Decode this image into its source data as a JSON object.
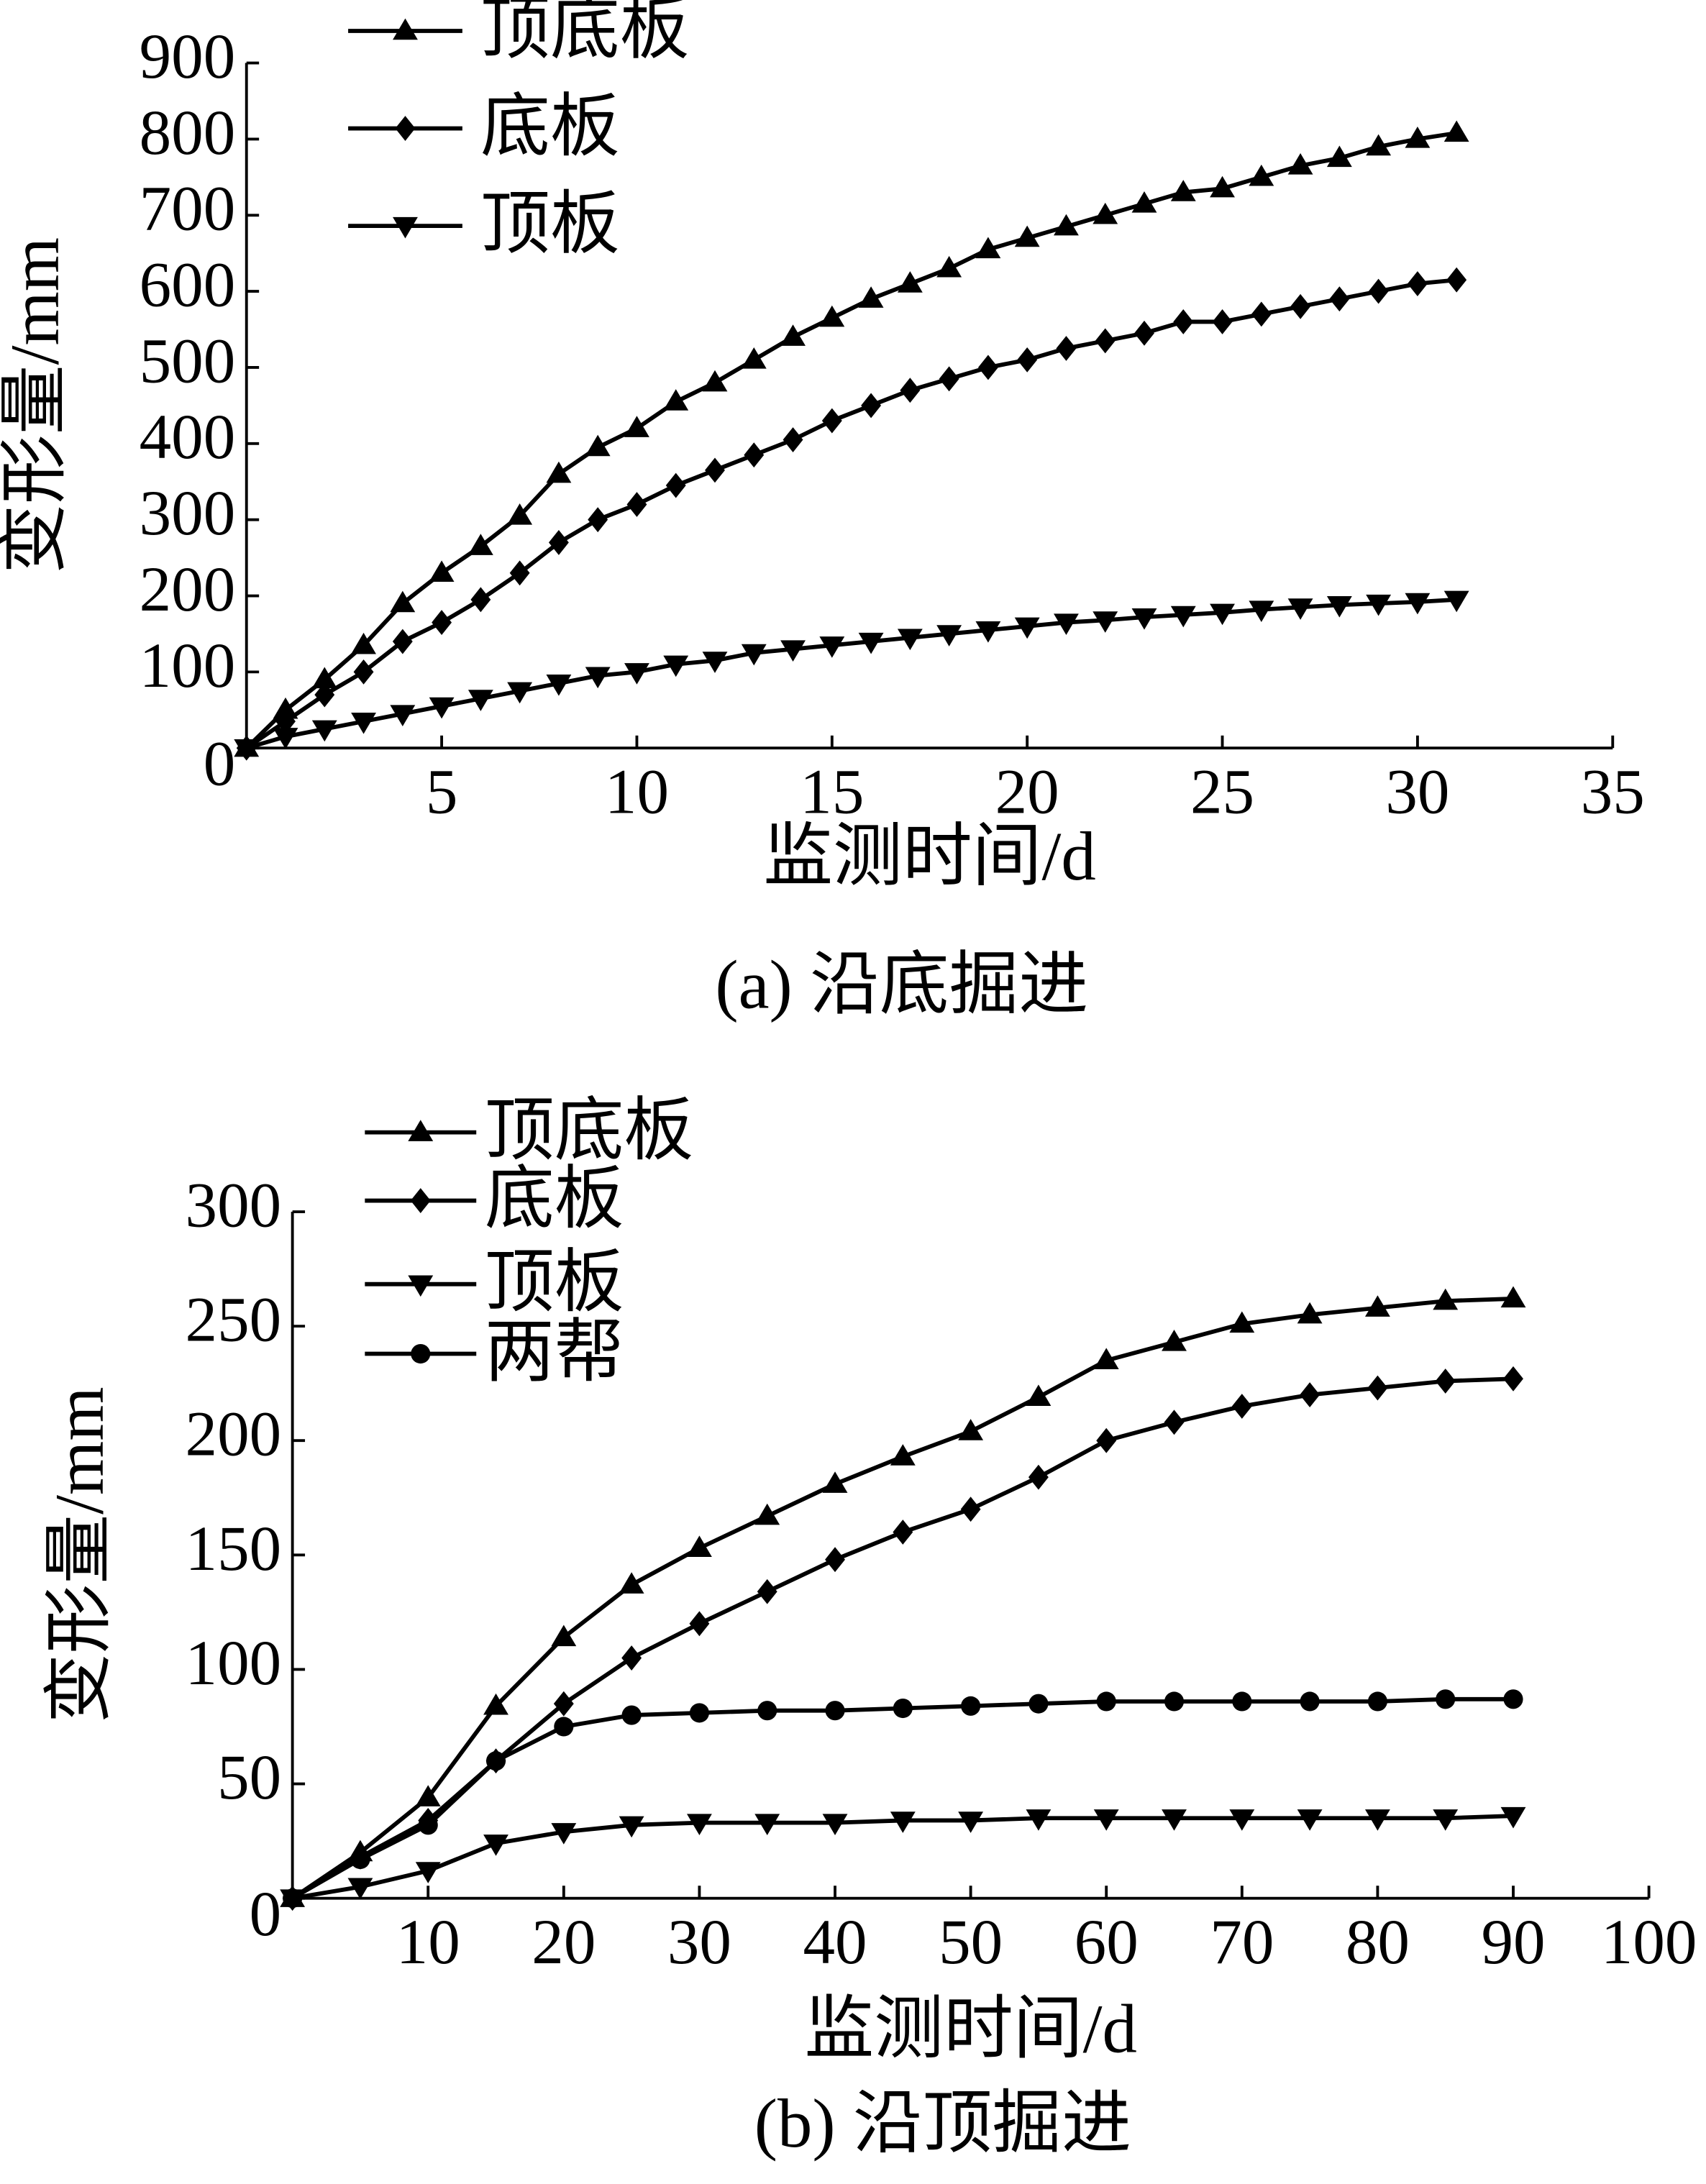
{
  "chart_data": [
    {
      "type": "line",
      "caption": "(a) 沿底掘进",
      "xlabel": "监测时间/d",
      "ylabel": "变形量/mm",
      "x": [
        0,
        1,
        2,
        3,
        4,
        5,
        6,
        7,
        8,
        9,
        10,
        11,
        12,
        13,
        14,
        15,
        16,
        17,
        18,
        19,
        20,
        21,
        22,
        23,
        24,
        25,
        26,
        27,
        28,
        29,
        30,
        31
      ],
      "xlim": [
        0,
        35
      ],
      "xticks": [
        5,
        10,
        15,
        20,
        25,
        30,
        35
      ],
      "ylim": [
        0,
        900
      ],
      "yticks": [
        0,
        100,
        200,
        300,
        400,
        500,
        600,
        700,
        800,
        900
      ],
      "series": [
        {
          "name": "顶底板",
          "color": "#000000",
          "marker": "triangle-up",
          "values": [
            0,
            50,
            90,
            135,
            190,
            230,
            265,
            305,
            360,
            395,
            420,
            455,
            480,
            510,
            540,
            565,
            590,
            610,
            630,
            655,
            670,
            685,
            700,
            715,
            730,
            735,
            750,
            765,
            775,
            790,
            800,
            808
          ]
        },
        {
          "name": "底板",
          "color": "#000000",
          "marker": "diamond",
          "values": [
            0,
            35,
            70,
            100,
            140,
            165,
            195,
            230,
            270,
            300,
            320,
            345,
            365,
            385,
            405,
            430,
            450,
            470,
            485,
            500,
            510,
            525,
            535,
            545,
            560,
            560,
            570,
            580,
            590,
            600,
            610,
            615
          ]
        },
        {
          "name": "顶板",
          "color": "#000000",
          "marker": "triangle-down",
          "values": [
            0,
            15,
            25,
            35,
            45,
            55,
            65,
            75,
            85,
            95,
            100,
            110,
            115,
            125,
            130,
            135,
            140,
            145,
            150,
            155,
            160,
            165,
            168,
            172,
            175,
            178,
            182,
            185,
            188,
            190,
            192,
            195
          ]
        }
      ]
    },
    {
      "type": "line",
      "caption": "(b) 沿顶掘进",
      "xlabel": "监测时间/d",
      "ylabel": "变形量/mm",
      "x": [
        0,
        5,
        10,
        15,
        20,
        25,
        30,
        35,
        40,
        45,
        50,
        55,
        60,
        65,
        70,
        75,
        80,
        85,
        90
      ],
      "xlim": [
        0,
        100
      ],
      "xticks": [
        10,
        20,
        30,
        40,
        50,
        60,
        70,
        80,
        90,
        100
      ],
      "ylim": [
        0,
        300
      ],
      "yticks": [
        0,
        50,
        100,
        150,
        200,
        250,
        300
      ],
      "series": [
        {
          "name": "顶底板",
          "color": "#000000",
          "marker": "triangle-up",
          "values": [
            0,
            20,
            44,
            84,
            114,
            137,
            153,
            167,
            181,
            193,
            204,
            219,
            235,
            243,
            251,
            255,
            258,
            261,
            262
          ]
        },
        {
          "name": "底板",
          "color": "#000000",
          "marker": "diamond",
          "values": [
            0,
            18,
            34,
            60,
            85,
            105,
            120,
            134,
            148,
            160,
            170,
            184,
            200,
            208,
            215,
            220,
            223,
            226,
            227
          ]
        },
        {
          "name": "顶板",
          "color": "#000000",
          "marker": "triangle-down",
          "values": [
            0,
            5,
            12,
            24,
            29,
            32,
            33,
            33,
            33,
            34,
            34,
            35,
            35,
            35,
            35,
            35,
            35,
            35,
            36
          ]
        },
        {
          "name": "两帮",
          "color": "#000000",
          "marker": "circle",
          "values": [
            0,
            17,
            32,
            60,
            75,
            80,
            81,
            82,
            82,
            83,
            84,
            85,
            86,
            86,
            86,
            86,
            86,
            87,
            87
          ]
        }
      ]
    }
  ]
}
